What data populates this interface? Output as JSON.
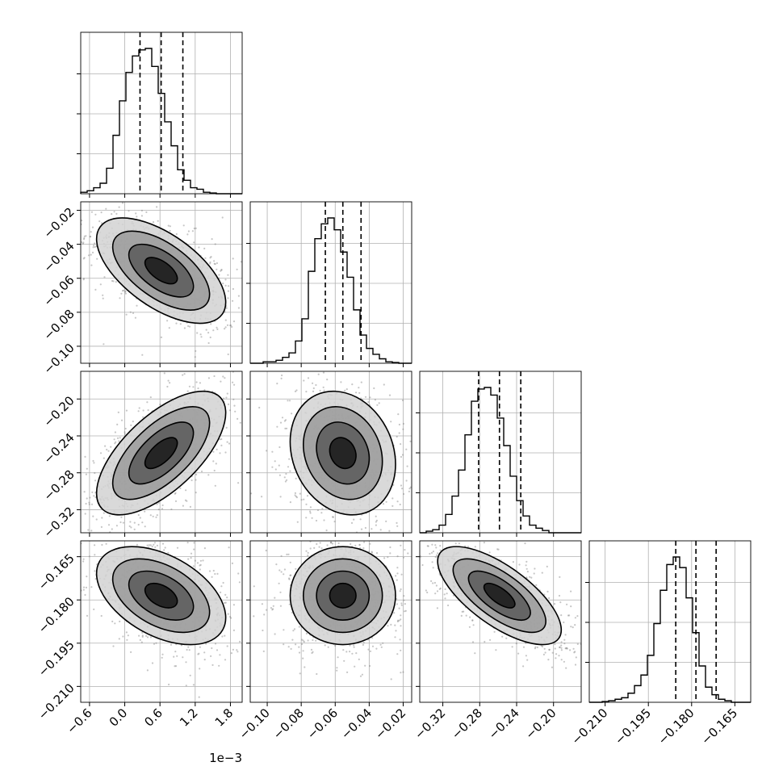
{
  "chart_data": {
    "type": "corner",
    "title": "",
    "parameters": [
      {
        "index": 0,
        "range": [
          -0.75,
          2.0
        ],
        "ticks": [
          -0.6,
          0.0,
          0.6,
          1.2,
          1.8
        ],
        "tick_labels": [
          "−0.6",
          "0.0",
          "0.6",
          "1.2",
          "1.8"
        ],
        "offset_label": "1e−3",
        "quantiles": [
          0.26,
          0.62,
          0.99
        ],
        "marginal_y_max": 1.0
      },
      {
        "index": 1,
        "range": [
          -0.11,
          -0.015
        ],
        "ticks": [
          -0.1,
          -0.08,
          -0.06,
          -0.04,
          -0.02
        ],
        "tick_labels": [
          "−0.10",
          "−0.08",
          "−0.06",
          "−0.04",
          "−0.02"
        ],
        "quantiles": [
          -0.0658,
          -0.0555,
          -0.0448
        ],
        "marginal_y_max": 1.0
      },
      {
        "index": 2,
        "range": [
          -0.345,
          -0.17
        ],
        "ticks": [
          -0.32,
          -0.28,
          -0.24,
          -0.2
        ],
        "tick_labels": [
          "−0.32",
          "−0.28",
          "−0.24",
          "−0.20"
        ],
        "quantiles": [
          -0.2812,
          -0.2586,
          -0.2355
        ],
        "marginal_y_max": 1.0
      },
      {
        "index": 3,
        "range": [
          -0.2155,
          -0.1595
        ],
        "ticks": [
          -0.165,
          -0.18,
          -0.195,
          -0.21
        ],
        "tick_labels": [
          "−0.165",
          "−0.180",
          "−0.195",
          "−0.210"
        ],
        "quantiles": [
          -0.1855,
          -0.1785,
          -0.1715
        ],
        "marginal_y_max": 1.0
      }
    ],
    "marginals": [
      {
        "param": 0,
        "bin_edges_start": -0.75,
        "bin_width": 0.11,
        "counts": [
          0.01,
          0.02,
          0.04,
          0.07,
          0.17,
          0.39,
          0.62,
          0.81,
          0.92,
          0.96,
          0.97,
          0.85,
          0.67,
          0.48,
          0.32,
          0.16,
          0.09,
          0.04,
          0.03,
          0.01,
          0.005,
          0.0,
          0.0,
          0.0,
          0.0
        ]
      },
      {
        "param": 1,
        "bin_edges_start": -0.11,
        "bin_width": 0.0038,
        "counts": [
          0.0,
          0.0,
          0.01,
          0.01,
          0.02,
          0.04,
          0.07,
          0.15,
          0.3,
          0.62,
          0.84,
          0.94,
          0.98,
          0.9,
          0.75,
          0.58,
          0.36,
          0.19,
          0.1,
          0.06,
          0.03,
          0.01,
          0.005,
          0.0,
          0.0
        ]
      },
      {
        "param": 2,
        "bin_edges_start": -0.345,
        "bin_width": 0.007,
        "counts": [
          0.0,
          0.01,
          0.02,
          0.05,
          0.12,
          0.24,
          0.41,
          0.64,
          0.86,
          0.94,
          0.95,
          0.9,
          0.75,
          0.57,
          0.37,
          0.21,
          0.11,
          0.05,
          0.03,
          0.015,
          0.0,
          0.0,
          0.0,
          0.0,
          0.0
        ]
      },
      {
        "param": 3,
        "bin_edges_start": -0.2155,
        "bin_width": 0.00224,
        "counts": [
          0.0,
          0.0,
          0.005,
          0.01,
          0.02,
          0.03,
          0.06,
          0.11,
          0.18,
          0.31,
          0.52,
          0.74,
          0.91,
          0.96,
          0.89,
          0.69,
          0.46,
          0.24,
          0.1,
          0.05,
          0.02,
          0.01,
          0.0,
          0.0,
          0.0
        ]
      }
    ],
    "joint": [
      {
        "x_param": 0,
        "y_param": 1,
        "x_mean": 0.62,
        "x_sd": 0.55,
        "y_mean": -0.0555,
        "y_sd": 0.0155,
        "rho": -0.6
      },
      {
        "x_param": 0,
        "y_param": 2,
        "x_mean": 0.62,
        "x_sd": 0.55,
        "y_mean": -0.2586,
        "y_sd": 0.0335,
        "rho": 0.65
      },
      {
        "x_param": 1,
        "y_param": 2,
        "x_mean": -0.0555,
        "x_sd": 0.0155,
        "y_mean": -0.2586,
        "y_sd": 0.0335,
        "rho": -0.18
      },
      {
        "x_param": 0,
        "y_param": 3,
        "x_mean": 0.62,
        "x_sd": 0.55,
        "y_mean": -0.1785,
        "y_sd": 0.0085,
        "rho": -0.45
      },
      {
        "x_param": 1,
        "y_param": 3,
        "x_mean": -0.0555,
        "x_sd": 0.0155,
        "y_mean": -0.1785,
        "y_sd": 0.0085,
        "rho": 0.0
      },
      {
        "x_param": 2,
        "y_param": 3,
        "x_mean": -0.2586,
        "x_sd": 0.0335,
        "y_mean": -0.1785,
        "y_sd": 0.0085,
        "rho": -0.7
      }
    ],
    "contour_levels_sigma": [
      0.5,
      1.0,
      1.5,
      2.0
    ],
    "grid": true,
    "colors": {
      "hist": "#000000",
      "contour": "#000000",
      "scatter": "#808080",
      "grid": "#b0b0b0"
    }
  }
}
